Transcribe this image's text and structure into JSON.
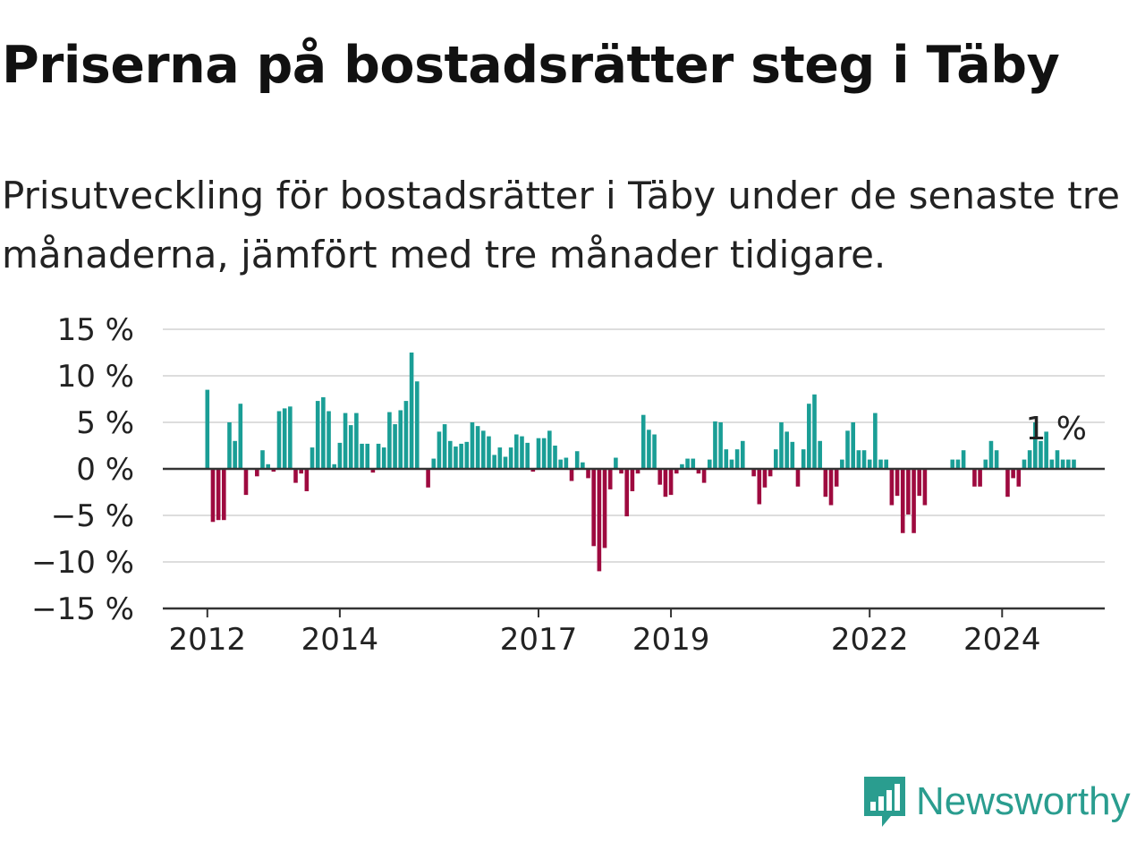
{
  "title": "Priserna på bostadsrätter steg i Täby",
  "subtitle": "Prisutveckling för bostadsrätter i Täby under de senaste tre månaderna, jämfört med tre månader tidigare.",
  "brand": {
    "name": "Newsworthy",
    "color": "#2a9d8f"
  },
  "colors": {
    "positive": "#1a9e96",
    "negative": "#9e0a3f",
    "grid": "#dddddd",
    "axis": "#333333"
  },
  "chart_data": {
    "type": "bar",
    "ylim": [
      -15,
      15
    ],
    "yticks": [
      15,
      10,
      5,
      0,
      -5,
      -10,
      -15
    ],
    "ytick_labels": [
      "15 %",
      "10 %",
      "5 %",
      "0 %",
      "−5 %",
      "−10 %",
      "−15 %"
    ],
    "xtick_labels": [
      "2012",
      "2014",
      "2017",
      "2019",
      "2022",
      "2024"
    ],
    "xtick_positions": [
      0,
      24,
      60,
      84,
      120,
      144
    ],
    "grid": true,
    "annotation": "1 %",
    "values": [
      8.5,
      -5.7,
      -5.5,
      -5.5,
      5,
      3,
      7,
      -2.8,
      0,
      -0.8,
      2,
      0.5,
      -0.3,
      6.2,
      6.5,
      6.7,
      -1.5,
      -0.5,
      -2.4,
      2.3,
      7.3,
      7.7,
      6.2,
      0.5,
      2.8,
      6,
      4.7,
      6,
      2.7,
      2.7,
      -0.4,
      2.7,
      2.3,
      6.1,
      4.8,
      6.3,
      7.3,
      12.5,
      9.4,
      0,
      -2,
      1.1,
      4,
      4.8,
      3,
      2.4,
      2.7,
      2.9,
      5,
      4.6,
      4.1,
      3.5,
      1.5,
      2.3,
      1.3,
      2.3,
      3.7,
      3.5,
      2.8,
      -0.3,
      3.3,
      3.3,
      4.1,
      2.5,
      1,
      1.2,
      -1.3,
      1.9,
      0.7,
      -1,
      -8.3,
      -11,
      -8.5,
      -2.2,
      1.2,
      -0.5,
      -5.1,
      -2.4,
      -0.5,
      5.8,
      4.2,
      3.7,
      -1.7,
      -3,
      -2.8,
      -0.5,
      0.5,
      1.1,
      1.1,
      -0.5,
      -1.5,
      1,
      5.1,
      5,
      2.1,
      1,
      2.1,
      3,
      0,
      -0.8,
      -3.8,
      -2,
      -0.8,
      2.1,
      5,
      4,
      2.9,
      -1.9,
      2.1,
      7,
      8,
      3,
      -3,
      -3.9,
      -1.9,
      1,
      4.1,
      5,
      2,
      2,
      1,
      6,
      1,
      1,
      -3.9,
      -2.9,
      -6.9,
      -4.9,
      -6.9,
      -2.9,
      -3.9,
      0,
      0,
      0,
      0,
      1,
      1,
      2,
      0,
      -1.9,
      -1.9,
      1,
      3,
      2,
      0,
      -3,
      -1,
      -1.9,
      1,
      2,
      5,
      3,
      4,
      1,
      2,
      1,
      1,
      1
    ]
  }
}
